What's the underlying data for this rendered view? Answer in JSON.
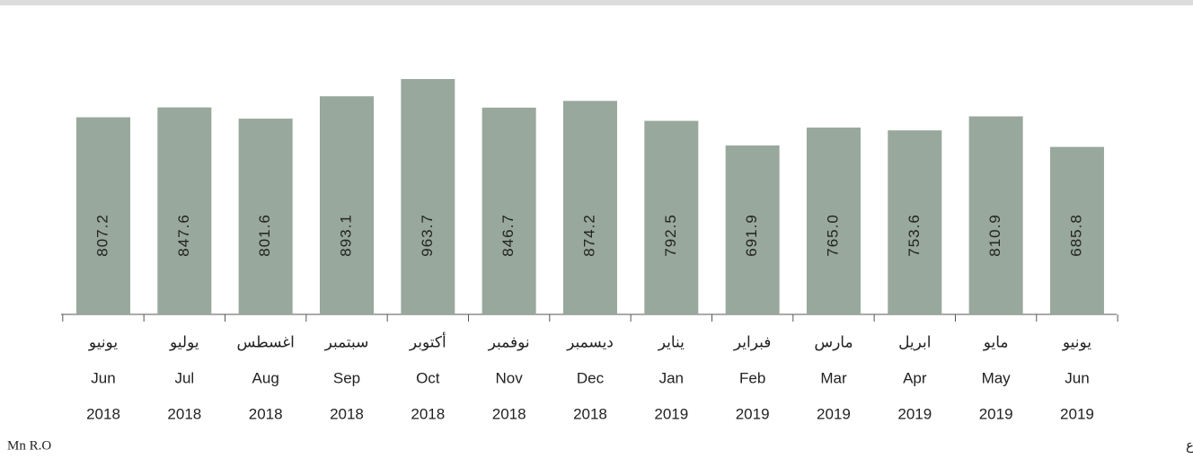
{
  "chart_data": {
    "type": "bar",
    "categories_ar": [
      "يونيو",
      "يوليو",
      "اغسطس",
      "سبتمبر",
      "أكتوبر",
      "نوفمبر",
      "ديسمبر",
      "يناير",
      "فبراير",
      "مارس",
      "ابريل",
      "مايو",
      "يونيو"
    ],
    "categories": [
      "Jun",
      "Jul",
      "Aug",
      "Sep",
      "Oct",
      "Nov",
      "Dec",
      "Jan",
      "Feb",
      "Mar",
      "Apr",
      "May",
      "Jun"
    ],
    "years": [
      "2018",
      "2018",
      "2018",
      "2018",
      "2018",
      "2018",
      "2018",
      "2019",
      "2019",
      "2019",
      "2019",
      "2019",
      "2019"
    ],
    "values": [
      807.2,
      847.6,
      801.6,
      893.1,
      963.7,
      846.7,
      874.2,
      792.5,
      691.9,
      765.0,
      753.6,
      810.9,
      685.8
    ],
    "value_labels": [
      "807.2",
      "847.6",
      "801.6",
      "893.1",
      "963.7",
      "846.7",
      "874.2",
      "792.5",
      "691.9",
      "765.0",
      "753.6",
      "810.9",
      "685.8"
    ],
    "color": "#98a89c",
    "unit_en": "Mn R.O",
    "unit_ar": "مليون ر.ع"
  }
}
